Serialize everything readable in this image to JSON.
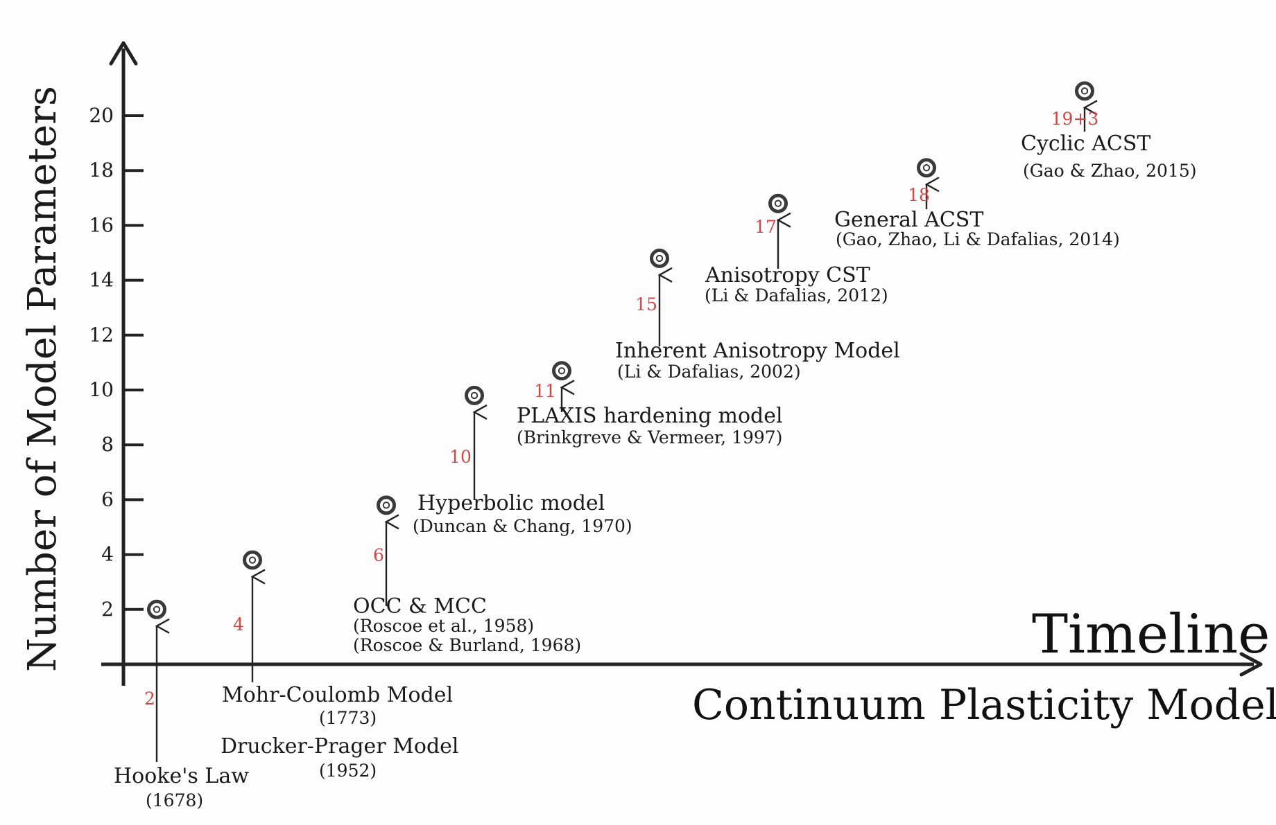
{
  "chart_data": {
    "type": "scatter",
    "ylabel": "Number of Model Parameters",
    "timeline_label": "Timeline",
    "xlabel": "Continuum Plasticity Models",
    "yticks": [
      "2",
      "4",
      "6",
      "8",
      "10",
      "12",
      "14",
      "16",
      "18",
      "20"
    ],
    "ylim": [
      0,
      21
    ],
    "grid": false,
    "colors": {
      "axis": "#222222",
      "param_label": "#d64545",
      "marker": "#444444"
    },
    "points": [
      {
        "model": "Hooke's Law",
        "ref": "(1678)",
        "params_label": "2",
        "params": 2
      },
      {
        "model": "Mohr-Coulomb Model",
        "ref": "(1773)",
        "model2": "Drucker-Prager Model",
        "ref2": "(1952)",
        "params_label": "4",
        "params": 3.8
      },
      {
        "model": "OCC & MCC",
        "ref": "(Roscoe et al., 1958)",
        "ref2": "(Roscoe & Burland, 1968)",
        "params_label": "6",
        "params": 5.8
      },
      {
        "model": "Hyperbolic model",
        "ref": "(Duncan & Chang, 1970)",
        "params_label": "10",
        "params": 9.8
      },
      {
        "model": "PLAXIS hardening model",
        "ref": "(Brinkgreve & Vermeer, 1997)",
        "params_label": "11",
        "params": 10.7
      },
      {
        "model": "Inherent Anisotropy Model",
        "ref": "(Li & Dafalias, 2002)",
        "params_label": "15",
        "params": 14.8
      },
      {
        "model": "Anisotropy CST",
        "ref": "(Li & Dafalias, 2012)",
        "params_label": "17",
        "params": 16.8
      },
      {
        "model": "General ACST",
        "ref": "(Gao, Zhao, Li & Dafalias, 2014)",
        "params_label": "18",
        "params": 18.1
      },
      {
        "model": "Cyclic ACST",
        "ref": "(Gao & Zhao, 2015)",
        "params_label": "19+3",
        "params": 20.9
      }
    ]
  }
}
